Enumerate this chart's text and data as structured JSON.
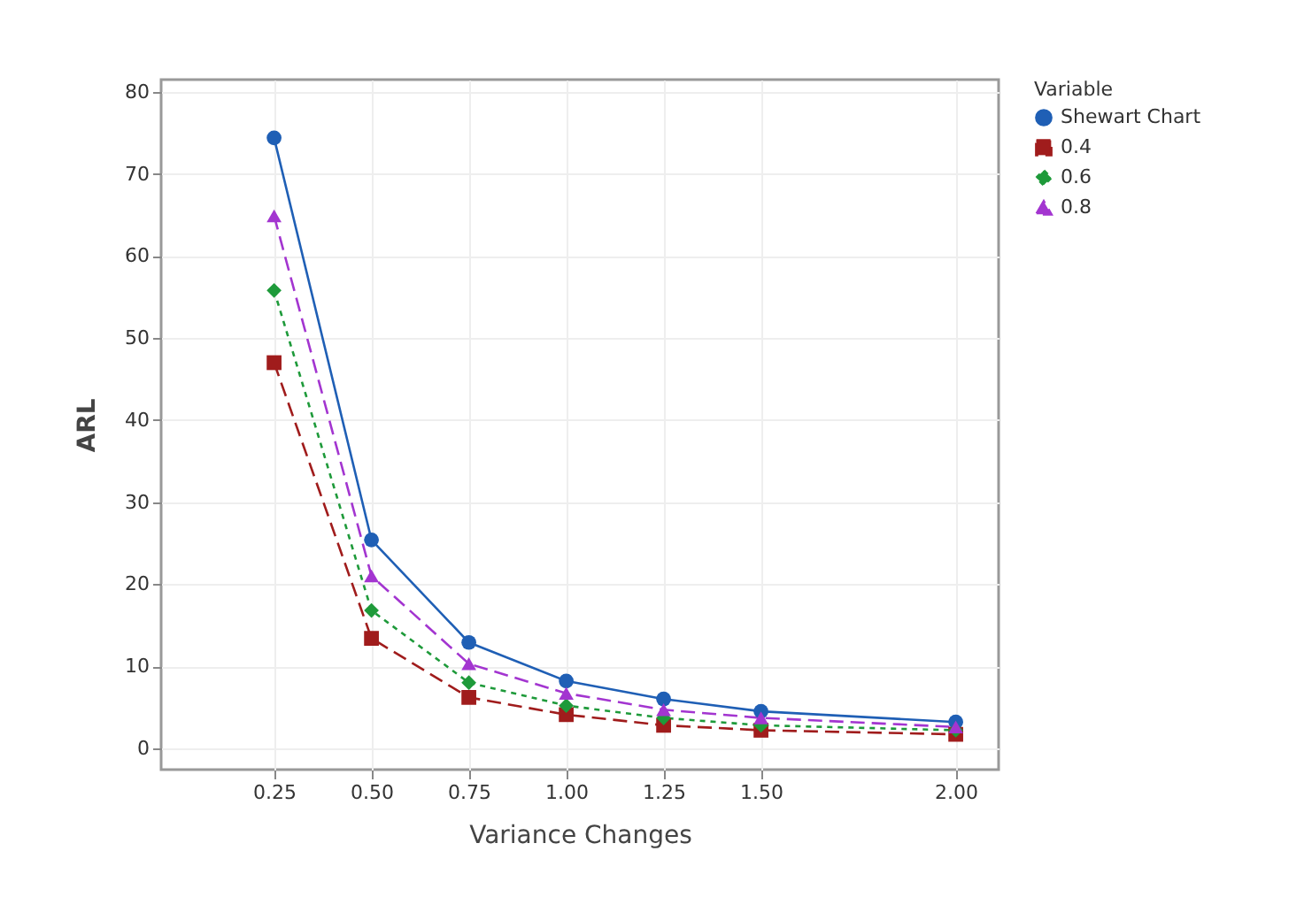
{
  "chart_data": {
    "type": "line",
    "xlabel": "Variance Changes",
    "ylabel": "ARL",
    "legend_title": "Variable",
    "x": [
      0.25,
      0.5,
      0.75,
      1.0,
      1.25,
      1.5,
      2.0
    ],
    "series": [
      {
        "name": "Shewart Chart",
        "color": "#1f5fb5",
        "marker": "circle",
        "line_style": "solid",
        "values": [
          74.4,
          25.4,
          12.9,
          8.2,
          6.0,
          4.5,
          3.2
        ]
      },
      {
        "name": "0.4",
        "color": "#a01c1c",
        "marker": "square",
        "line_style": "dashed",
        "values": [
          47,
          13.4,
          6.2,
          4.1,
          2.8,
          2.2,
          1.7
        ]
      },
      {
        "name": "0.6",
        "color": "#1e9a3a",
        "marker": "diamond",
        "line_style": "dotted",
        "values": [
          55.8,
          16.8,
          8.0,
          5.2,
          3.7,
          2.8,
          2.2
        ]
      },
      {
        "name": "0.8",
        "color": "#a335d0",
        "marker": "triangle",
        "line_style": "dashed",
        "values": [
          64.9,
          21,
          10.3,
          6.7,
          4.7,
          3.7,
          2.6
        ]
      }
    ],
    "xlim": [
      -0.04,
      2.11
    ],
    "ylim": [
      -2.6,
      81.5
    ],
    "xticks": [
      {
        "value": 0.25,
        "label": "0.25"
      },
      {
        "value": 0.5,
        "label": "0.50"
      },
      {
        "value": 0.75,
        "label": "0.75"
      },
      {
        "value": 1.0,
        "label": "1.00"
      },
      {
        "value": 1.25,
        "label": "1.25"
      },
      {
        "value": 1.5,
        "label": "1.50"
      },
      {
        "value": 2.0,
        "label": "2.00"
      }
    ],
    "yticks": [
      0,
      10,
      20,
      30,
      40,
      50,
      60,
      70,
      80
    ],
    "grid": true,
    "legend": "top right"
  }
}
